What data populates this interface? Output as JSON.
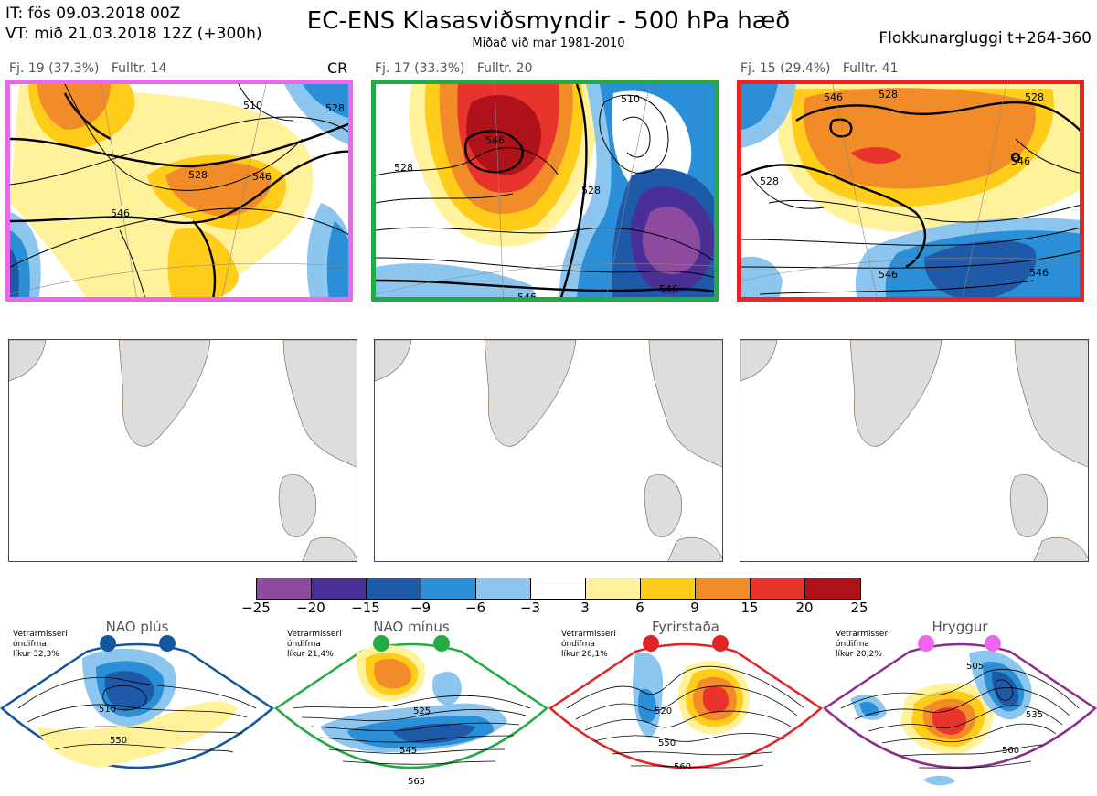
{
  "header": {
    "line1": "IT: fös 09.03.2018 00Z",
    "line2": "VT: mið 21.03.2018 12Z  (+300h)",
    "title": "EC-ENS Klasasviðsmyndir - 500 hPa hæð",
    "subtitle": "Miðað við mar 1981-2010",
    "window": "Flokkunargluggi t+264-360"
  },
  "panels": [
    {
      "label": "Fj. 19 (37.3%)",
      "rep": "Fulltr. 14",
      "badge": "CR",
      "border": "#ee66ee",
      "contours": [
        "510",
        "528",
        "546",
        "528",
        "546"
      ]
    },
    {
      "label": "Fj. 17 (33.3%)",
      "rep": "Fulltr. 20",
      "badge": "",
      "border": "#22aa44",
      "contours": [
        "546",
        "528",
        "510",
        "528",
        "546",
        "546"
      ]
    },
    {
      "label": "Fj. 15 (29.4%)",
      "rep": "Fulltr. 41",
      "badge": "",
      "border": "#ee2222",
      "contours": [
        "546",
        "528",
        "528",
        "546",
        "528",
        "546",
        "546"
      ]
    }
  ],
  "colorbar": {
    "colors": [
      "#8e4a9e",
      "#4a2f96",
      "#1f5aa8",
      "#2a8fd6",
      "#8cc6ee",
      "#ffffff",
      "#fff29a",
      "#ffcc1a",
      "#f28c28",
      "#e8342c",
      "#b0121c"
    ],
    "ticks": [
      "−25",
      "−20",
      "−15",
      "−9",
      "−6",
      "−3",
      "3",
      "6",
      "9",
      "15",
      "20",
      "25"
    ]
  },
  "regimes": [
    {
      "name": "NAO plús",
      "line1": "Vetrarmisseri",
      "line2": "óndifma",
      "line3": "líkur 32,3%",
      "color": "#1457a0",
      "contours": [
        "510",
        "550"
      ]
    },
    {
      "name": "NAO mínus",
      "line1": "Vetrarmisseri",
      "line2": "óndifma",
      "line3": "líkur 21,4%",
      "color": "#22aa44",
      "contours": [
        "525",
        "545",
        "565"
      ]
    },
    {
      "name": "Fyrirstaða",
      "line1": "Vetrarmisseri",
      "line2": "óndifma",
      "line3": "líkur 26,1%",
      "color": "#e02424",
      "contours": [
        "520",
        "550",
        "560"
      ]
    },
    {
      "name": "Hryggur",
      "line1": "Vetrarmisseri",
      "line2": "óndifma",
      "line3": "líkur 20,2%",
      "color": "#ee66ee",
      "contours": [
        "505",
        "535",
        "560"
      ]
    }
  ]
}
